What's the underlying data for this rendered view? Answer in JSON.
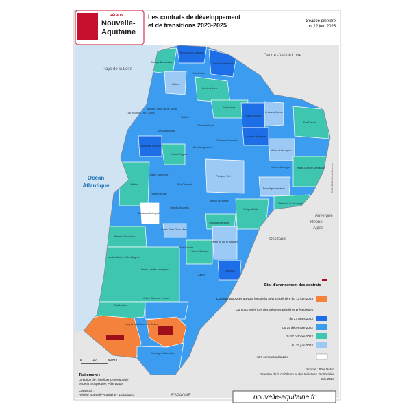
{
  "header": {
    "logo_top": "RÉGION",
    "logo": [
      "Nouvelle-",
      "Aquitaine"
    ],
    "title": [
      "Les contrats de développement",
      "et de transitions 2023-2025"
    ],
    "session": [
      "Séance plénière",
      "du 12 juin 2023"
    ]
  },
  "map": {
    "neighbors": [
      "Pays de la Loire",
      "Centre - Val de Loire",
      "Auvergne",
      "Rhône-",
      "Alpes",
      "Occitanie",
      "ESPAGNE"
    ],
    "ocean": [
      "Océan",
      "Atlantique"
    ],
    "credit": "©IGN 2023 Admin Express",
    "territories": [
      "Thouarsais-Loudunais",
      "Bocage Bressuirais",
      "Grand Châtellerault",
      "Gâtine",
      "Haut-Poitou",
      "Centre Vienne",
      "Sud Vienne",
      "La Rochelle - Ré - Aunis",
      "Niortais - Haut Val de Sèvre",
      "Mellois",
      "Haut Limousin",
      "Creusois Guéret",
      "Sud Creuse",
      "Aunis Saintonge",
      "Charente Nord",
      "Charente Limousine",
      "Saintonge Romane",
      "Grand Cognac",
      "Grand Angoulême",
      "Limoges Métropole",
      "Monts et Barrages",
      "Haute Saintonge",
      "Sud Charente",
      "Périgord Vert",
      "Vézère-Auvergne",
      "Haute-Corrèze Ventadour",
      "Brive Agglomération",
      "Médoc",
      "Haute Gironde",
      "Isle en Dordogne",
      "Vallée de la Dordogne",
      "Bordeaux Métropole",
      "Grand Libournais",
      "Périgord Noir",
      "Grand Bergeracois",
      "Bassin d'Arcachon",
      "Coeur Entre-Deux-Mers",
      "Sud Gironde",
      "Val de Garonne",
      "Vallée du Lot et Bastides",
      "Landes Nature Côte d'Argent",
      "Albret",
      "Agenais",
      "Haute Landes Armagnac",
      "Adour Chalosse Tursan",
      "Sud Landes",
      "Pays Basque",
      "Grand Pau",
      "Lacq Orthez Béarn des Gaves",
      "Montagne Béarnaise"
    ]
  },
  "scale": [
    "0",
    "20",
    "40 Km"
  ],
  "legend": {
    "title": "État d'avancement des contrats",
    "proposed": "Contrats proposés au vote lors de la Séance plénière du 12 juin 2023",
    "voted_title": "Contrats votés lors des Séances plénières précédentes",
    "items": [
      "du 27 mars 2023",
      "du 15 décembre 2022",
      "du 17 octobre 2022",
      "du 20 juin 2022",
      "Hors contractualisation"
    ]
  },
  "source": [
    "Source : Pôle Datar,",
    "Direction de la Cohésion et des Initiatives Territoriales",
    "Juin 2023"
  ],
  "treatment": [
    "Traitement :",
    "Direction de l'intelligence territoriale",
    "et de la prospective, Pôle Datar"
  ],
  "copyright": [
    "Copyright :",
    "Région Nouvelle-Aquitaine - 12/06/2023"
  ],
  "url": "nouvelle-aquitaine.fr"
}
